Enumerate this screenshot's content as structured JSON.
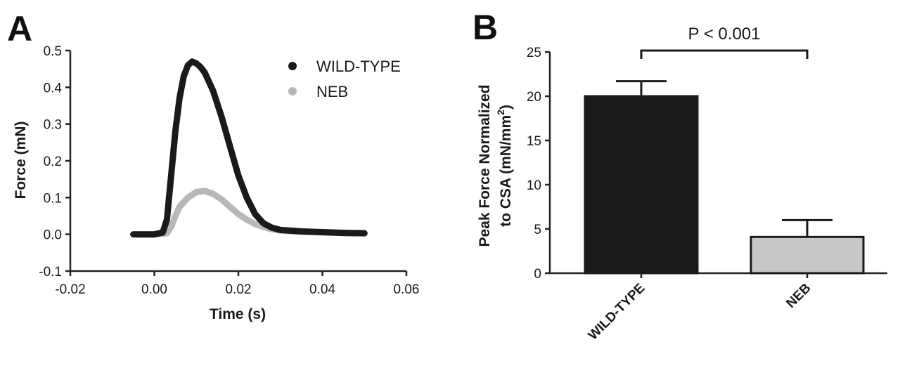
{
  "chart_data": [
    {
      "panel": "A",
      "type": "line",
      "xlabel": "Time (s)",
      "ylabel": "Force (mN)",
      "xlim": [
        -0.02,
        0.06
      ],
      "ylim": [
        -0.1,
        0.5
      ],
      "xticks": [
        -0.02,
        0.0,
        0.02,
        0.04,
        0.06
      ],
      "xtick_labels": [
        "-0.02",
        "0.00",
        "0.02",
        "0.04",
        "0.06"
      ],
      "yticks": [
        -0.1,
        0.0,
        0.1,
        0.2,
        0.3,
        0.4,
        0.5
      ],
      "ytick_labels": [
        "-0.1",
        "0.0",
        "0.1",
        "0.2",
        "0.3",
        "0.4",
        "0.5"
      ],
      "legend_position": "top-right",
      "series": [
        {
          "name": "WILD-TYPE",
          "color": "#1a1a1a",
          "x": [
            -0.005,
            0.0,
            0.002,
            0.003,
            0.004,
            0.005,
            0.006,
            0.007,
            0.008,
            0.009,
            0.01,
            0.011,
            0.012,
            0.014,
            0.016,
            0.018,
            0.02,
            0.022,
            0.024,
            0.026,
            0.028,
            0.03,
            0.035,
            0.04,
            0.045,
            0.05
          ],
          "y": [
            0.0,
            0.0,
            0.005,
            0.04,
            0.16,
            0.28,
            0.37,
            0.43,
            0.46,
            0.47,
            0.465,
            0.455,
            0.44,
            0.39,
            0.32,
            0.24,
            0.16,
            0.1,
            0.055,
            0.03,
            0.018,
            0.012,
            0.008,
            0.006,
            0.004,
            0.003
          ]
        },
        {
          "name": "NEB",
          "color": "#b8b8b8",
          "x": [
            -0.005,
            0.0,
            0.003,
            0.004,
            0.005,
            0.006,
            0.008,
            0.01,
            0.012,
            0.014,
            0.016,
            0.018,
            0.02,
            0.022,
            0.024,
            0.026,
            0.028,
            0.03,
            0.035,
            0.04,
            0.045,
            0.05
          ],
          "y": [
            0.0,
            0.0,
            0.003,
            0.02,
            0.05,
            0.075,
            0.1,
            0.115,
            0.118,
            0.11,
            0.095,
            0.075,
            0.055,
            0.04,
            0.028,
            0.02,
            0.014,
            0.01,
            0.007,
            0.005,
            0.004,
            0.003
          ]
        }
      ]
    },
    {
      "panel": "B",
      "type": "bar",
      "ylabel_line1": "Peak Force Normalized",
      "ylabel_line2": "to CSA (mN/mm",
      "ylabel_sup": "2",
      "ylabel_close": ")",
      "ylim": [
        0,
        25
      ],
      "yticks": [
        0,
        5,
        10,
        15,
        20,
        25
      ],
      "ytick_labels": [
        "0",
        "5",
        "10",
        "15",
        "20",
        "25"
      ],
      "categories": [
        "WILD-TYPE",
        "NEB"
      ],
      "values": [
        20.0,
        4.1
      ],
      "errors": [
        1.7,
        1.9
      ],
      "colors": [
        "#1a1a1a",
        "#c8c8c8"
      ],
      "annotation": "P < 0.001"
    }
  ]
}
